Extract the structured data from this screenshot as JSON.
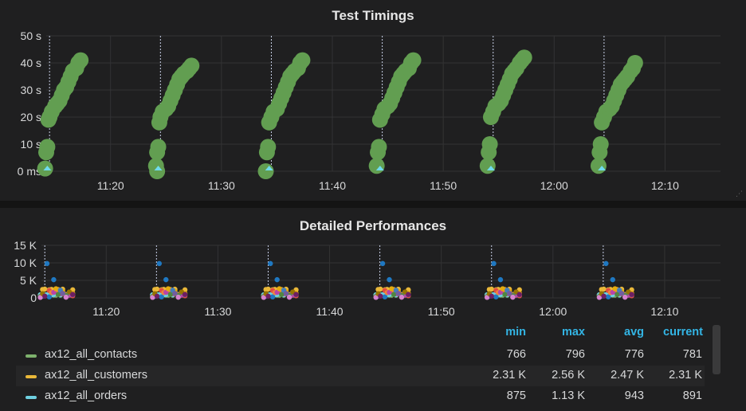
{
  "panels": {
    "timings": {
      "title": "Test Timings",
      "chart_data": {
        "type": "scatter",
        "title": "Test Timings",
        "y_ticks": [
          "50 s",
          "40 s",
          "30 s",
          "20 s",
          "10 s",
          "0 ms"
        ],
        "y_tick_values": [
          50,
          40,
          30,
          20,
          10,
          0
        ],
        "ylim": [
          0,
          50
        ],
        "x_ticks": [
          "11:20",
          "11:30",
          "11:40",
          "11:50",
          "12:00",
          "12:10"
        ],
        "x_tick_minutes": [
          80,
          90,
          100,
          110,
          120,
          130
        ],
        "xlim_minutes": [
          74.2,
          135.0
        ],
        "grid": true,
        "annotation_minutes": [
          74.5,
          84.5,
          94.5,
          104.5,
          114.5,
          124.5
        ],
        "series": [
          {
            "color": "#629e51",
            "runs": [
              {
                "x": [
                  74.1,
                  74.2,
                  74.3,
                  74.4,
                  74.5,
                  74.7,
                  75.0,
                  75.2,
                  75.4,
                  75.6,
                  75.8,
                  76.0,
                  76.2,
                  76.4,
                  76.6,
                  76.9,
                  77.1,
                  77.3
                ],
                "y": [
                  1,
                  7,
                  9,
                  19,
                  20,
                  22,
                  24,
                  25,
                  26,
                  28,
                  30,
                  31,
                  33,
                  35,
                  37,
                  38,
                  40,
                  41
                ]
              },
              {
                "x": [
                  84.1,
                  84.2,
                  84.3,
                  84.4,
                  84.5,
                  84.7,
                  85.0,
                  85.2,
                  85.4,
                  85.6,
                  85.8,
                  86.0,
                  86.2,
                  86.4,
                  86.6,
                  86.9,
                  87.1,
                  87.3
                ],
                "y": [
                  2,
                  7,
                  9,
                  18,
                  20,
                  22,
                  23,
                  24,
                  26,
                  28,
                  30,
                  32,
                  34,
                  35,
                  36,
                  37,
                  38,
                  39
                ]
              },
              {
                "x": [
                  84.2
                ],
                "y": [
                  0
                ]
              },
              {
                "x": [
                  94.0,
                  94.1,
                  94.2,
                  94.3,
                  94.5,
                  94.7,
                  95.0,
                  95.2,
                  95.4,
                  95.6,
                  95.8,
                  96.0,
                  96.2,
                  96.4,
                  96.6,
                  96.9,
                  97.1,
                  97.3
                ],
                "y": [
                  0,
                  7,
                  9,
                  18,
                  20,
                  22,
                  23,
                  25,
                  27,
                  29,
                  31,
                  33,
                  35,
                  36,
                  37,
                  38,
                  40,
                  41
                ]
              },
              {
                "x": [
                  104.0,
                  104.1,
                  104.2,
                  104.3,
                  104.5,
                  104.7,
                  105.0,
                  105.2,
                  105.4,
                  105.6,
                  105.8,
                  106.0,
                  106.2,
                  106.4,
                  106.6,
                  106.9,
                  107.1,
                  107.3
                ],
                "y": [
                  2,
                  7,
                  9,
                  19,
                  21,
                  23,
                  24,
                  25,
                  27,
                  29,
                  31,
                  33,
                  35,
                  36,
                  37,
                  38,
                  40,
                  41
                ]
              },
              {
                "x": [
                  114.0,
                  114.1,
                  114.2,
                  114.3,
                  114.5,
                  114.7,
                  115.0,
                  115.2,
                  115.4,
                  115.6,
                  115.8,
                  116.0,
                  116.2,
                  116.4,
                  116.6,
                  116.9,
                  117.1,
                  117.3
                ],
                "y": [
                  2,
                  7,
                  10,
                  20,
                  22,
                  24,
                  25,
                  26,
                  28,
                  30,
                  32,
                  34,
                  36,
                  37,
                  38,
                  40,
                  41,
                  42
                ]
              },
              {
                "x": [
                  124.0,
                  124.1,
                  124.2,
                  124.3,
                  124.5,
                  124.7,
                  125.0,
                  125.2,
                  125.4,
                  125.6,
                  125.8,
                  126.0,
                  126.2,
                  126.4,
                  126.6,
                  126.9,
                  127.1,
                  127.3
                ],
                "y": [
                  2,
                  7,
                  10,
                  18,
                  20,
                  22,
                  23,
                  24,
                  26,
                  28,
                  30,
                  32,
                  33,
                  34,
                  35,
                  37,
                  38,
                  40
                ]
              }
            ]
          },
          {
            "color": "#70dbed",
            "runs": [
              {
                "x": [
                  74.3,
                  84.3,
                  94.3,
                  104.3,
                  114.3,
                  124.3
                ],
                "y": [
                  0.6,
                  0.6,
                  0.6,
                  0.6,
                  0.6,
                  0.6
                ]
              }
            ]
          }
        ]
      }
    },
    "performances": {
      "title": "Detailed Performances",
      "chart_data": {
        "type": "scatter",
        "title": "Detailed Performances",
        "y_ticks": [
          "15 K",
          "10 K",
          "5 K",
          "0"
        ],
        "y_tick_values": [
          15000,
          10000,
          5000,
          0
        ],
        "ylim": [
          0,
          15000
        ],
        "x_ticks": [
          "11:20",
          "11:30",
          "11:40",
          "11:50",
          "12:00",
          "12:10"
        ],
        "x_tick_minutes": [
          80,
          90,
          100,
          110,
          120,
          130
        ],
        "xlim_minutes": [
          74.2,
          135.0
        ],
        "grid": true,
        "annotation_minutes": [
          74.5,
          84.5,
          94.5,
          104.5,
          114.5,
          124.5
        ],
        "burst_offsets_minutes": [
          0.0,
          0.2,
          0.4,
          0.6,
          0.8,
          1.0,
          1.2,
          1.4,
          1.6,
          1.8,
          2.0,
          2.3,
          2.6,
          2.9
        ],
        "series": [
          {
            "name": "ax12_all_contacts",
            "color": "#7eb26d",
            "values": [
              780,
              770,
              790,
              775,
              781,
              768,
              796,
              772
            ]
          },
          {
            "name": "ax12_all_customers",
            "color": "#eab839",
            "values": [
              2400,
              2310,
              2560,
              2470,
              2310,
              2500,
              2430,
              2380
            ]
          },
          {
            "name": "ax12_all_orders",
            "color": "#6ed0e0",
            "values": [
              900,
              875,
              1130,
              943,
              891,
              920,
              960,
              910
            ]
          },
          {
            "color": "#1f78c1",
            "values": [
              9800,
              5200,
              2000,
              1000,
              500,
              300
            ]
          },
          {
            "color": "#e24d42",
            "values": [
              2100,
              1800,
              1200,
              600
            ]
          },
          {
            "color": "#ef843c",
            "values": [
              1500,
              2200,
              900,
              400
            ]
          },
          {
            "color": "#ba43a9",
            "values": [
              1600,
              1200,
              800
            ]
          },
          {
            "color": "#e5ac0e",
            "values": [
              2600,
              1900,
              1300
            ]
          },
          {
            "color": "#508642",
            "values": [
              1000,
              700,
              400
            ]
          },
          {
            "color": "#447ebc",
            "values": [
              2200,
              1600,
              1100
            ]
          },
          {
            "color": "#705da0",
            "values": [
              1300,
              900
            ]
          },
          {
            "color": "#d683ce",
            "values": [
              200,
              150
            ]
          },
          {
            "color": "#967302",
            "values": [
              1700,
              1200
            ]
          },
          {
            "color": "#6d1f62",
            "values": [
              1000,
              500
            ]
          }
        ]
      },
      "legend": {
        "headers": {
          "min": "min",
          "max": "max",
          "avg": "avg",
          "current": "current"
        },
        "rows": [
          {
            "name": "ax12_all_contacts",
            "color": "#7eb26d",
            "min": "766",
            "max": "796",
            "avg": "776",
            "current": "781"
          },
          {
            "name": "ax12_all_customers",
            "color": "#eab839",
            "min": "2.31 K",
            "max": "2.56 K",
            "avg": "2.47 K",
            "current": "2.31 K"
          },
          {
            "name": "ax12_all_orders",
            "color": "#6ed0e0",
            "min": "875",
            "max": "1.13 K",
            "avg": "943",
            "current": "891"
          }
        ]
      }
    }
  }
}
